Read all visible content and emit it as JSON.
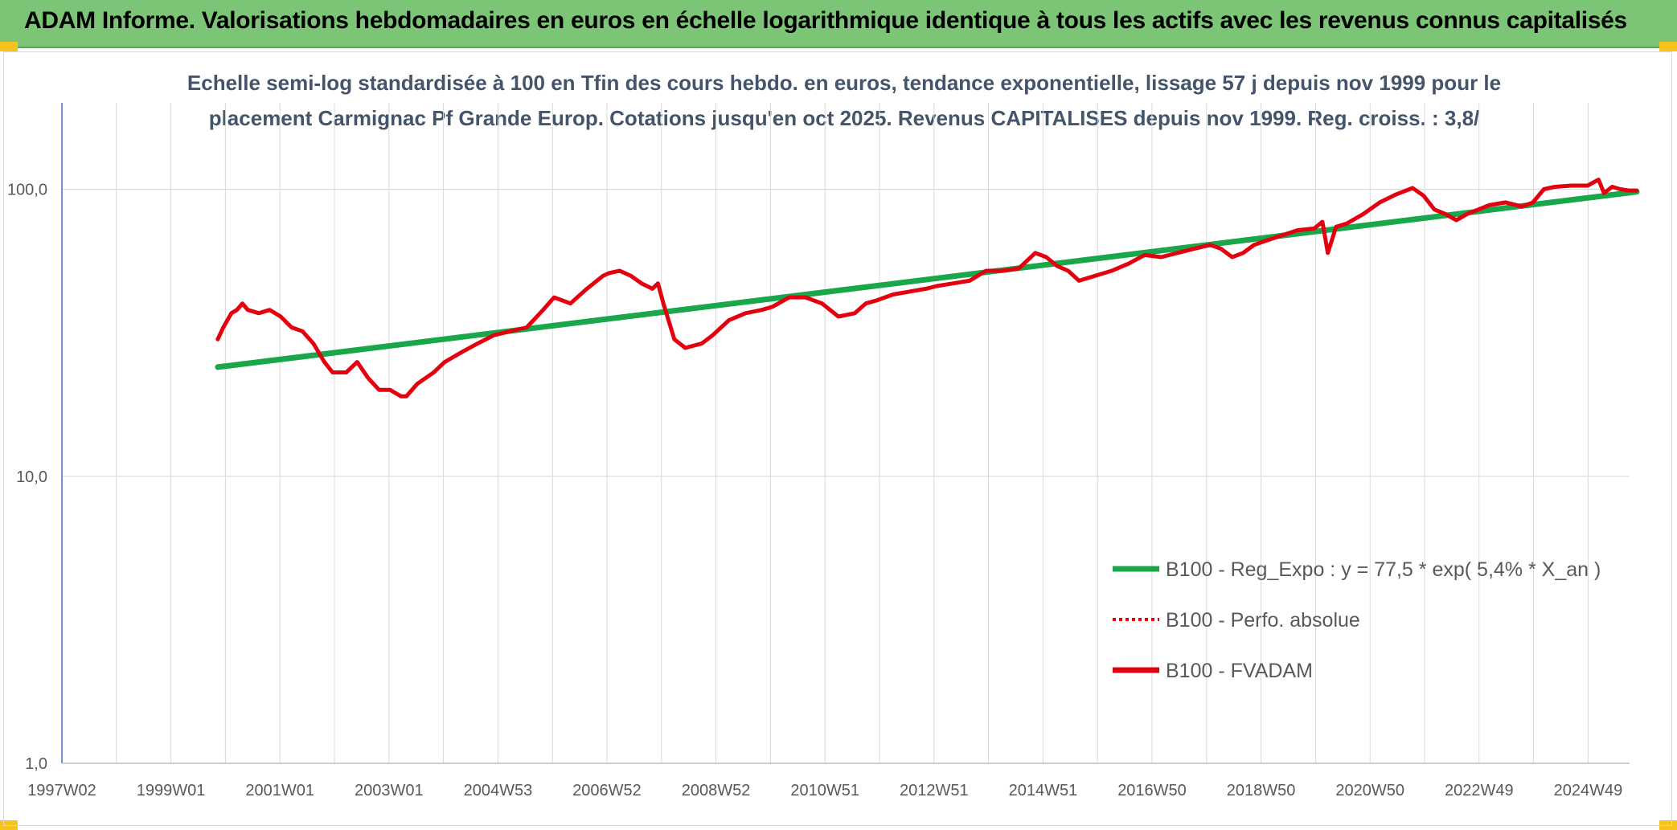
{
  "header": {
    "title": "ADAM Informe. Valorisations hebdomadaires en euros en échelle logarithmique identique à tous les actifs avec les revenus connus capitalisés"
  },
  "colors": {
    "banner": "#7cc576",
    "trend": "#1aa64a",
    "price": "#e3000f",
    "axis": "#4472c4",
    "grid": "#d9d9d9",
    "corner": "#f7c21b"
  },
  "chart_data": {
    "type": "line",
    "title_line1": "Echelle semi-log standardisée à 100 en Tfin des cours hebdo. en euros, tendance exponentielle, lissage 57 j depuis nov 1999 pour le",
    "title_line2": "placement Carmignac Pf Grande Europ. Cotations jusqu'en oct 2025. Revenus CAPITALISES depuis nov 1999. Reg. croiss. : 3,8/",
    "y_scale": "log",
    "ylim": [
      1,
      200
    ],
    "y_ticks": [
      "1,0",
      "10,0",
      "100,0"
    ],
    "x_ticks": [
      "1997W02",
      "1999W01",
      "2001W01",
      "2003W01",
      "2004W53",
      "2006W52",
      "2008W52",
      "2010W51",
      "2012W51",
      "2014W51",
      "2016W50",
      "2018W50",
      "2020W50",
      "2022W49",
      "2024W49"
    ],
    "grid": true,
    "legend_position": "right",
    "legend": [
      {
        "label": "B100 - Reg_Expo : y = 77,5 * exp( 5,4% *  X_an )",
        "style": "solid",
        "color": "#1aa64a"
      },
      {
        "label": "B100 - Perfo. absolue",
        "style": "dotted",
        "color": "#e3000f"
      },
      {
        "label": "B100 - FVADAM",
        "style": "solid",
        "color": "#e3000f"
      }
    ],
    "series": [
      {
        "name": "B100 - Reg_Expo : y = 77,5 * exp( 5,4% *  X_an )",
        "x": [
          1999.85,
          2025.8
        ],
        "y": [
          24,
          98
        ]
      },
      {
        "name": "B100 - FVADAM",
        "x": [
          1999.85,
          1999.95,
          2000.1,
          2000.2,
          2000.3,
          2000.4,
          2000.6,
          2000.8,
          2001.0,
          2001.2,
          2001.4,
          2001.6,
          2001.8,
          2001.95,
          2002.2,
          2002.4,
          2002.6,
          2002.8,
          2003.0,
          2003.2,
          2003.3,
          2003.5,
          2003.8,
          2004.0,
          2004.3,
          2004.6,
          2004.9,
          2005.2,
          2005.5,
          2005.8,
          2006.0,
          2006.3,
          2006.6,
          2006.9,
          2007.0,
          2007.2,
          2007.4,
          2007.6,
          2007.8,
          2007.9,
          2008.0,
          2008.2,
          2008.4,
          2008.7,
          2008.9,
          2009.2,
          2009.5,
          2009.8,
          2010.0,
          2010.3,
          2010.6,
          2010.9,
          2011.2,
          2011.5,
          2011.7,
          2011.9,
          2012.2,
          2012.5,
          2012.8,
          2013.0,
          2013.3,
          2013.6,
          2013.9,
          2014.2,
          2014.5,
          2014.8,
          2015.0,
          2015.2,
          2015.4,
          2015.6,
          2015.9,
          2016.2,
          2016.5,
          2016.8,
          2017.1,
          2017.4,
          2017.7,
          2018.0,
          2018.2,
          2018.4,
          2018.6,
          2018.8,
          2019.0,
          2019.3,
          2019.6,
          2019.9,
          2020.05,
          2020.15,
          2020.3,
          2020.5,
          2020.8,
          2021.1,
          2021.4,
          2021.7,
          2021.9,
          2022.1,
          2022.3,
          2022.5,
          2022.7,
          2022.9,
          2023.1,
          2023.4,
          2023.7,
          2023.9,
          2024.1,
          2024.3,
          2024.6,
          2024.9,
          2025.1,
          2025.2,
          2025.35,
          2025.5,
          2025.65,
          2025.8
        ],
        "y": [
          30,
          33,
          37,
          38,
          40,
          38,
          37,
          38,
          36,
          33,
          32,
          29,
          25,
          23,
          23,
          25,
          22,
          20,
          20,
          19,
          19,
          21,
          23,
          25,
          27,
          29,
          31,
          32,
          33,
          38,
          42,
          40,
          45,
          50,
          51,
          52,
          50,
          47,
          45,
          47,
          40,
          30,
          28,
          29,
          31,
          35,
          37,
          38,
          39,
          42,
          42,
          40,
          36,
          37,
          40,
          41,
          43,
          44,
          45,
          46,
          47,
          48,
          52,
          52,
          53,
          60,
          58,
          54,
          52,
          48,
          50,
          52,
          55,
          59,
          58,
          60,
          62,
          64,
          62,
          58,
          60,
          64,
          66,
          69,
          72,
          73,
          77,
          60,
          74,
          76,
          82,
          90,
          96,
          101,
          95,
          85,
          82,
          78,
          82,
          85,
          88,
          90,
          87,
          90,
          100,
          102,
          103,
          103,
          108,
          97,
          102,
          100,
          99,
          99
        ]
      }
    ]
  }
}
